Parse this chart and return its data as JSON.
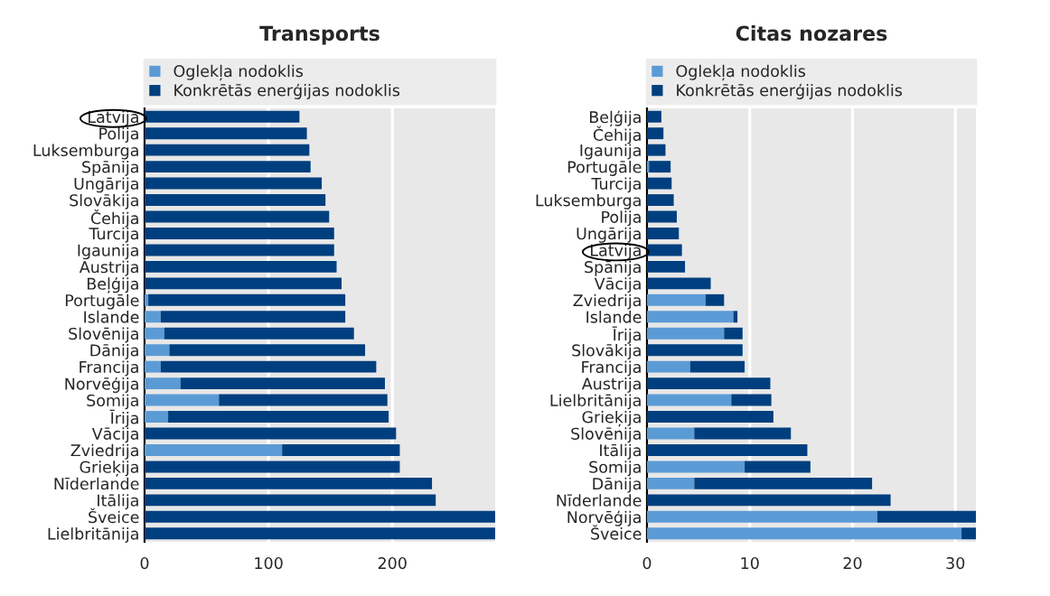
{
  "chart_data": [
    {
      "type": "bar",
      "title": "Transports",
      "orientation": "horizontal",
      "stacked": true,
      "legend": "top",
      "grid": "x",
      "categories": [
        "Latvija",
        "Polija",
        "Luksemburga",
        "Spānija",
        "Ungārija",
        "Slovākija",
        "Čehija",
        "Turcija",
        "Igaunija",
        "Austrija",
        "Beļģija",
        "Portugāle",
        "Islande",
        "Slovēnija",
        "Dānija",
        "Francija",
        "Norvēģija",
        "Somija",
        "Īrija",
        "Vācija",
        "Zviedrija",
        "Grieķija",
        "Nīderlande",
        "Itālija",
        "Šveice",
        "Lielbritānija"
      ],
      "series": [
        {
          "name": "Oglekļa nodoklis",
          "color": "#5b9bd5",
          "values": [
            0,
            0,
            0,
            0,
            0,
            0,
            0,
            0,
            0,
            0,
            0,
            3,
            13,
            16,
            20,
            13,
            29,
            60,
            19,
            0,
            111,
            0,
            0,
            0,
            0,
            0
          ]
        },
        {
          "name": "Konkrētās enerģijas nodoklis",
          "color": "#003f7f",
          "values": [
            125,
            131,
            133,
            134,
            143,
            146,
            149,
            153,
            153,
            155,
            159,
            159,
            149,
            153,
            158,
            174,
            165,
            136,
            178,
            203,
            95,
            206,
            232,
            235,
            283,
            283
          ]
        }
      ],
      "xlim": [
        0,
        283
      ],
      "xticks": [
        0,
        100,
        200
      ]
    },
    {
      "type": "bar",
      "title": "Citas nozares",
      "orientation": "horizontal",
      "stacked": true,
      "legend": "top",
      "grid": "x",
      "categories": [
        "Beļģija",
        "Čehija",
        "Igaunija",
        "Portugāle",
        "Turcija",
        "Luksemburga",
        "Polija",
        "Ungārija",
        "Latvija",
        "Spānija",
        "Vācija",
        "Zviedrija",
        "Islande",
        "Īrija",
        "Slovākija",
        "Francija",
        "Austrija",
        "Lielbritānija",
        "Grieķija",
        "Slovēnija",
        "Itālija",
        "Somija",
        "Dānija",
        "Nīderlande",
        "Norvēģija",
        "Šveice"
      ],
      "series": [
        {
          "name": "Oglekļa nodoklis",
          "color": "#5b9bd5",
          "values": [
            0,
            0,
            0,
            0.2,
            0,
            0,
            0,
            0,
            0,
            0,
            0,
            5.7,
            8.4,
            7.5,
            0,
            4.2,
            0,
            8.2,
            0,
            4.6,
            0,
            9.5,
            4.6,
            0,
            22.4,
            30.6
          ]
        },
        {
          "name": "Konkrētās enerģijas nodoklis",
          "color": "#003f7f",
          "values": [
            1.4,
            1.6,
            1.8,
            2.1,
            2.4,
            2.6,
            2.9,
            3.1,
            3.4,
            3.7,
            6.2,
            1.8,
            0.4,
            1.8,
            9.3,
            5.3,
            12.0,
            3.9,
            12.3,
            9.4,
            15.6,
            6.4,
            17.3,
            23.7,
            9.6,
            1.4
          ]
        }
      ],
      "xlim": [
        0,
        32
      ],
      "xticks": [
        0,
        10,
        20,
        30
      ]
    }
  ]
}
